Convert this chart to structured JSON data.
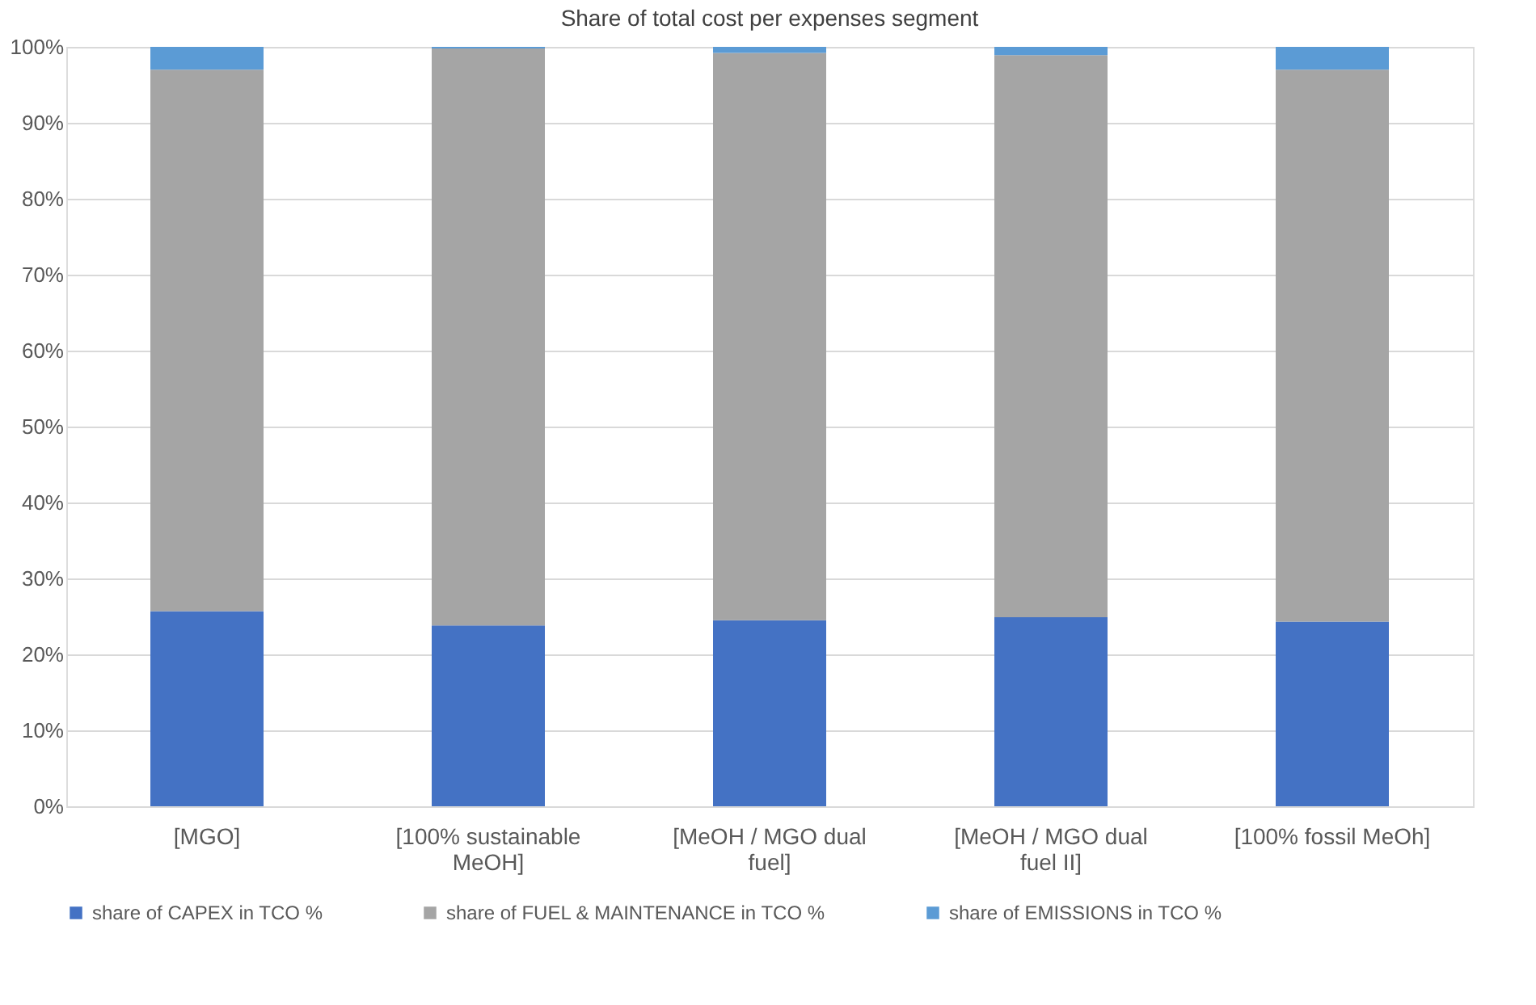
{
  "chart_data": {
    "type": "bar",
    "title": "Share of total cost per expenses segment",
    "categories": [
      "[MGO]",
      "[100% sustainable MeOH]",
      "[MeOH / MGO dual fuel]",
      "[MeOH / MGO dual fuel II]",
      "[100% fossil MeOh]"
    ],
    "stacked": true,
    "series": [
      {
        "name": "share of CAPEX in TCO %",
        "color": "#4472c4",
        "values": [
          25.7,
          23.8,
          24.5,
          24.9,
          24.3
        ]
      },
      {
        "name": "share of FUEL & MAINTENANCE in TCO %",
        "color": "#a5a5a5",
        "values": [
          71.3,
          76.0,
          74.7,
          74.0,
          72.7
        ]
      },
      {
        "name": "share of EMISSIONS in TCO %",
        "color": "#5b9bd5",
        "values": [
          3.0,
          0.2,
          0.8,
          1.1,
          3.0
        ]
      }
    ],
    "ylim": [
      0,
      100
    ],
    "yticks": [
      {
        "value": 0,
        "label": "0%"
      },
      {
        "value": 10,
        "label": "10%"
      },
      {
        "value": 20,
        "label": "20%"
      },
      {
        "value": 30,
        "label": "30%"
      },
      {
        "value": 40,
        "label": "40%"
      },
      {
        "value": 50,
        "label": "50%"
      },
      {
        "value": 60,
        "label": "60%"
      },
      {
        "value": 70,
        "label": "70%"
      },
      {
        "value": 80,
        "label": "80%"
      },
      {
        "value": 90,
        "label": "90%"
      },
      {
        "value": 100,
        "label": "100%"
      }
    ],
    "grid": "y",
    "legend": "bottom"
  }
}
